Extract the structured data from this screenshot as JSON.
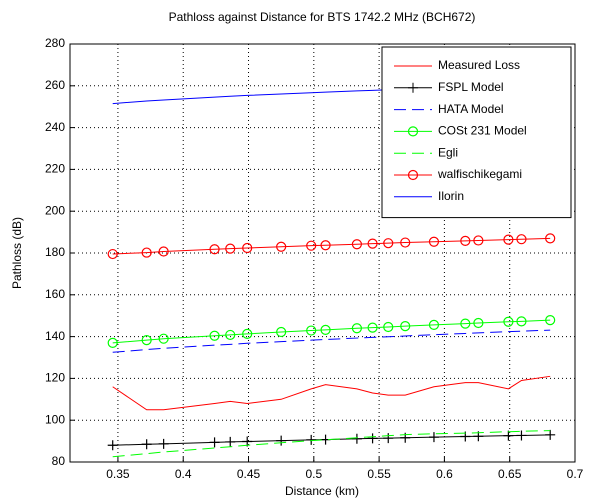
{
  "chart_data": {
    "type": "line",
    "title": "Pathloss against Distance for BTS 1742.2 MHz (BCH672)",
    "x_label": "Distance (km)",
    "y_label": "Pathloss (dB)",
    "x": [
      0.346,
      0.372,
      0.385,
      0.424,
      0.436,
      0.449,
      0.475,
      0.498,
      0.509,
      0.533,
      0.545,
      0.557,
      0.57,
      0.592,
      0.616,
      0.626,
      0.649,
      0.659,
      0.681
    ],
    "series": [
      {
        "name": "Measured Loss",
        "color": "#ff0000",
        "style": "solid",
        "marker": "none",
        "values": [
          116,
          105,
          105,
          108,
          109,
          108,
          110,
          115,
          117,
          115,
          113,
          112,
          112,
          116,
          118,
          118,
          115,
          119,
          121
        ]
      },
      {
        "name": "FSPL Model",
        "color": "#000000",
        "style": "solid",
        "marker": "plus",
        "values": [
          88,
          88.5,
          88.7,
          89.4,
          89.6,
          89.8,
          90.2,
          90.6,
          90.7,
          91.1,
          91.3,
          91.4,
          91.6,
          91.9,
          92.2,
          92.3,
          92.6,
          92.7,
          93
        ]
      },
      {
        "name": "HATA Model",
        "color": "#0000ff",
        "style": "dashed",
        "marker": "none",
        "values": [
          132.5,
          133.8,
          134.4,
          135.9,
          136.3,
          136.8,
          137.6,
          138.3,
          138.6,
          139.3,
          139.6,
          139.9,
          140.3,
          140.9,
          141.5,
          141.8,
          142.4,
          142.6,
          143.1
        ]
      },
      {
        "name": "COSt 231 Model",
        "color": "#00ff00",
        "style": "solid",
        "marker": "circle",
        "values": [
          137,
          138.3,
          139,
          140.4,
          140.8,
          141.3,
          142.2,
          142.9,
          143.2,
          144,
          144.3,
          144.6,
          145,
          145.6,
          146.2,
          146.5,
          147.1,
          147.3,
          147.9
        ]
      },
      {
        "name": "Egli",
        "color": "#00ff00",
        "style": "dashed",
        "marker": "none",
        "values": [
          82.5,
          84,
          84.8,
          86.7,
          87.3,
          88,
          89.2,
          90.2,
          90.6,
          91.6,
          92.1,
          92.6,
          93.1,
          93.5,
          93.8,
          94,
          94.5,
          94.7,
          95
        ]
      },
      {
        "name": "walfischikegami",
        "color": "#ff0000",
        "style": "solid",
        "marker": "circle",
        "values": [
          179.5,
          180.2,
          180.7,
          181.8,
          182.1,
          182.4,
          183,
          183.5,
          183.7,
          184.2,
          184.5,
          184.7,
          185,
          185.4,
          185.8,
          186,
          186.4,
          186.6,
          187
        ]
      },
      {
        "name": "Ilorin",
        "color": "#0000ff",
        "style": "solid",
        "marker": "none",
        "values": [
          251.5,
          252.7,
          253.2,
          254.6,
          255,
          255.4,
          256.1,
          256.7,
          257,
          257.6,
          257.8,
          258.1,
          258.4,
          258.9,
          259.4,
          259.6,
          260.1,
          260.3,
          260.7
        ]
      }
    ],
    "xlim": [
      0.3133,
      0.7
    ],
    "ylim": [
      80,
      280
    ],
    "xticks": [
      0.35,
      0.4,
      0.45,
      0.5,
      0.55,
      0.6,
      0.65,
      0.7
    ],
    "yticks": [
      80,
      100,
      120,
      140,
      160,
      180,
      200,
      220,
      240,
      260,
      280
    ],
    "grid": true,
    "legend": "top-right"
  }
}
